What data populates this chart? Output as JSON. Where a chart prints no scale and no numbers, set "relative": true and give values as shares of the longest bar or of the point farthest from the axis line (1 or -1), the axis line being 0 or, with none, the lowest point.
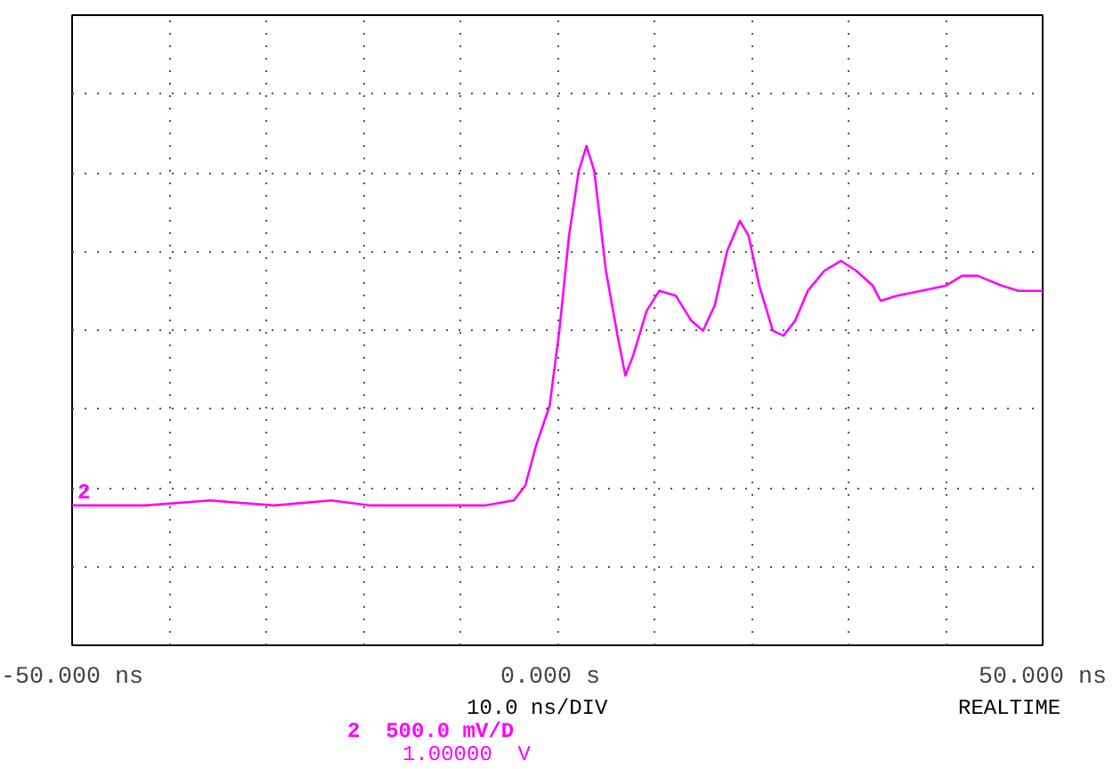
{
  "chart_data": {
    "type": "line",
    "relative": true,
    "x": [
      -50,
      -42.5,
      -35.8,
      -29.2,
      -23.3,
      -19.2,
      -12.5,
      -7.5,
      -4.5,
      -3.3,
      -2.2,
      -0.8,
      0.2,
      1.2,
      2.2,
      3.0,
      3.8,
      5.0,
      6.2,
      7.0,
      7.8,
      9.2,
      10.5,
      12.2,
      13.8,
      15.0,
      16.2,
      17.5,
      18.8,
      19.7,
      20.8,
      22.2,
      23.3,
      24.5,
      25.8,
      27.5,
      29.2,
      30.8,
      32.5,
      33.3,
      35.0,
      37.5,
      40.0,
      41.7,
      43.3,
      45.8,
      47.5,
      50.0
    ],
    "series": [
      {
        "color": "#ff00ff",
        "values": [
          0.28,
          0.28,
          0.29,
          0.28,
          0.29,
          0.28,
          0.28,
          0.28,
          0.29,
          0.32,
          0.4,
          0.48,
          0.63,
          0.82,
          0.95,
          1,
          0.95,
          0.75,
          0.62,
          0.54,
          0.58,
          0.67,
          0.71,
          0.7,
          0.65,
          0.63,
          0.68,
          0.79,
          0.85,
          0.82,
          0.72,
          0.63,
          0.62,
          0.65,
          0.71,
          0.75,
          0.77,
          0.75,
          0.72,
          0.69,
          0.7,
          0.71,
          0.72,
          0.74,
          0.74,
          0.72,
          0.71,
          0.71
        ]
      }
    ],
    "xlim": [
      -50,
      50
    ],
    "xticks": [
      {
        "value": -50,
        "label": "-50.000 ns"
      },
      {
        "value": -40,
        "label": null
      },
      {
        "value": -30,
        "label": null
      },
      {
        "value": -20,
        "label": null
      },
      {
        "value": -10,
        "label": null
      },
      {
        "value": 0,
        "label": "0.000  s"
      },
      {
        "value": 10,
        "label": null
      },
      {
        "value": 20,
        "label": null
      },
      {
        "value": 30,
        "label": null
      },
      {
        "value": 40,
        "label": null
      },
      {
        "value": 50,
        "label": "50.000 ns"
      }
    ],
    "grid": true,
    "line_style": "solid",
    "marker": "none",
    "tick_labels": "x",
    "annotations": [
      "10.0 ns/DIV",
      "REALTIME",
      "2  500.0 mV/D",
      "1.00000  V",
      "2"
    ]
  }
}
